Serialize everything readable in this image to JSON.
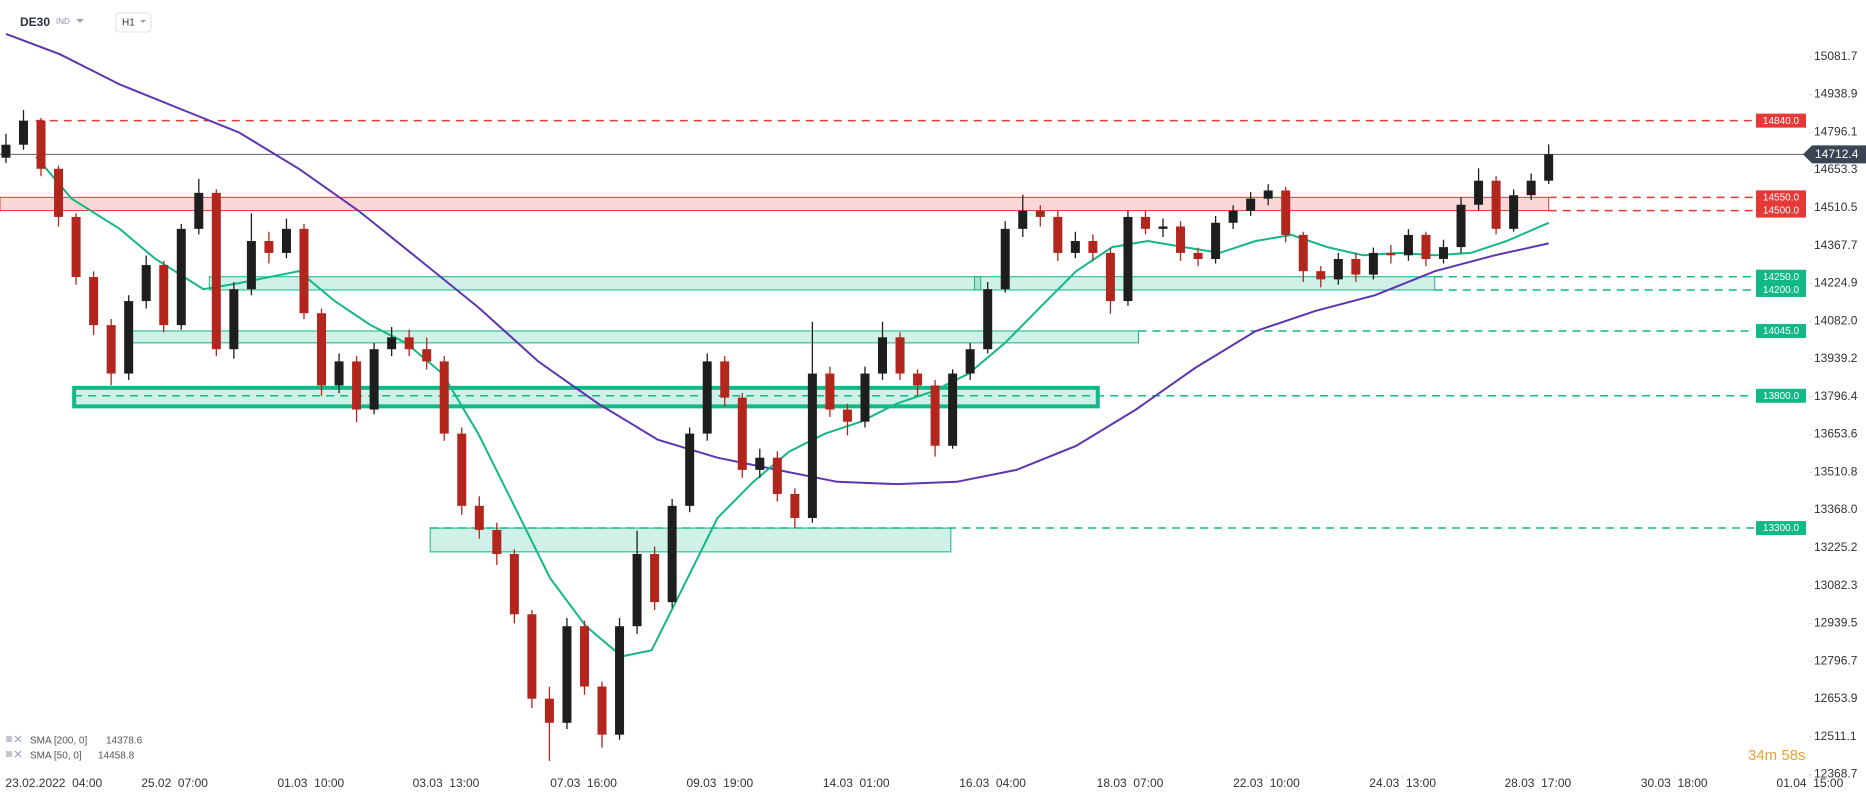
{
  "chart_data": {
    "type": "candlestick",
    "header": {
      "symbol": "DE30",
      "tag": "IND",
      "timeframe": "H1"
    },
    "xlim": [
      -0.34,
      106.1
    ],
    "ylim": [
      12291,
      15296
    ],
    "xticks": [
      {
        "value": 2.73,
        "label": "23.02.2022  04:00"
      },
      {
        "value": 9.62,
        "label": "25.02  07:00"
      },
      {
        "value": 17.39,
        "label": "01.03  10:00"
      },
      {
        "value": 25.1,
        "label": "03.03  13:00"
      },
      {
        "value": 32.95,
        "label": "07.03  16:00"
      },
      {
        "value": 40.72,
        "label": "09.03  19:00"
      },
      {
        "value": 48.5,
        "label": "14.03  01:00"
      },
      {
        "value": 56.28,
        "label": "16.03  04:00"
      },
      {
        "value": 64.12,
        "label": "18.03  07:00"
      },
      {
        "value": 71.9,
        "label": "22.03  10:00"
      },
      {
        "value": 79.67,
        "label": "24.03  13:00"
      },
      {
        "value": 87.38,
        "label": "28.03  17:00"
      },
      {
        "value": 95.16,
        "label": "30.03  18:00"
      },
      {
        "value": 102.9,
        "label": "01.04  15:00"
      }
    ],
    "yticks": [
      15081.7,
      14938.9,
      14796.1,
      14653.3,
      14510.5,
      14367.7,
      14224.9,
      {
        "value": 14082.0,
        "label": "14082.0"
      },
      13939.2,
      13796.4,
      13653.6,
      13510.8,
      {
        "value": 13368.0,
        "label": "13368.0"
      },
      13225.2,
      13082.3,
      12939.5,
      12796.7,
      12653.9,
      12511.1,
      12368.7
    ],
    "up_color": "#1e1e1e",
    "down_color": "#b3261e",
    "candles": [
      [
        14700,
        14790,
        14680,
        14749
      ],
      [
        14749,
        14880,
        14730,
        14840
      ],
      [
        14840,
        14850,
        14630,
        14658
      ],
      [
        14658,
        14670,
        14440,
        14476
      ],
      [
        14476,
        14490,
        14220,
        14249
      ],
      [
        14249,
        14270,
        14030,
        14067
      ],
      [
        14067,
        14090,
        13840,
        13884
      ],
      [
        13884,
        14180,
        13860,
        14158
      ],
      [
        14158,
        14330,
        14130,
        14294
      ],
      [
        14294,
        14310,
        14040,
        14067
      ],
      [
        14067,
        14450,
        14050,
        14431
      ],
      [
        14431,
        14620,
        14410,
        14567
      ],
      [
        14567,
        14580,
        13950,
        13976
      ],
      [
        13976,
        14230,
        13940,
        14203
      ],
      [
        14203,
        14490,
        14180,
        14385
      ],
      [
        14385,
        14420,
        14300,
        14340
      ],
      [
        14340,
        14470,
        14320,
        14431
      ],
      [
        14431,
        14450,
        14090,
        14112
      ],
      [
        14112,
        14130,
        13800,
        13839
      ],
      [
        13839,
        13960,
        13810,
        13930
      ],
      [
        13930,
        13950,
        13700,
        13748
      ],
      [
        13748,
        14000,
        13730,
        13976
      ],
      [
        13976,
        14060,
        13950,
        14021
      ],
      [
        14021,
        14050,
        13950,
        13976
      ],
      [
        13976,
        14020,
        13900,
        13930
      ],
      [
        13930,
        13950,
        13630,
        13657
      ],
      [
        13657,
        13680,
        13350,
        13384
      ],
      [
        13384,
        13420,
        13260,
        13293
      ],
      [
        13293,
        13320,
        13160,
        13202
      ],
      [
        13202,
        13220,
        12940,
        12974
      ],
      [
        12974,
        12990,
        12620,
        12655
      ],
      [
        12655,
        12700,
        12420,
        12564
      ],
      [
        12564,
        12960,
        12540,
        12929
      ],
      [
        12929,
        12950,
        12670,
        12701
      ],
      [
        12701,
        12720,
        12470,
        12519
      ],
      [
        12519,
        12960,
        12500,
        12929
      ],
      [
        12929,
        13290,
        12900,
        13202
      ],
      [
        13202,
        13230,
        12990,
        13020
      ],
      [
        13020,
        13410,
        13000,
        13384
      ],
      [
        13384,
        13680,
        13360,
        13657
      ],
      [
        13657,
        13960,
        13630,
        13930
      ],
      [
        13930,
        13950,
        13760,
        13793
      ],
      [
        13793,
        13810,
        13490,
        13520
      ],
      [
        13520,
        13600,
        13490,
        13566
      ],
      [
        13566,
        13590,
        13400,
        13429
      ],
      [
        13429,
        13450,
        13300,
        13338
      ],
      [
        13338,
        14080,
        13320,
        13884
      ],
      [
        13884,
        13910,
        13720,
        13748
      ],
      [
        13748,
        13770,
        13650,
        13702
      ],
      [
        13702,
        13910,
        13680,
        13884
      ],
      [
        13884,
        14080,
        13860,
        14021
      ],
      [
        14021,
        14040,
        13860,
        13884
      ],
      [
        13884,
        13900,
        13800,
        13839
      ],
      [
        13839,
        13860,
        13570,
        13611
      ],
      [
        13611,
        13900,
        13600,
        13884
      ],
      [
        13884,
        14000,
        13860,
        13976
      ],
      [
        13976,
        14230,
        13960,
        14203
      ],
      [
        14203,
        14460,
        14190,
        14431
      ],
      [
        14431,
        14560,
        14400,
        14499
      ],
      [
        14499,
        14520,
        14440,
        14476
      ],
      [
        14476,
        14500,
        14310,
        14340
      ],
      [
        14340,
        14420,
        14320,
        14385
      ],
      [
        14385,
        14410,
        14310,
        14340
      ],
      [
        14340,
        14360,
        14110,
        14158
      ],
      [
        14158,
        14500,
        14140,
        14476
      ],
      [
        14476,
        14500,
        14410,
        14431
      ],
      [
        14431,
        14470,
        14400,
        14440
      ],
      [
        14440,
        14460,
        14310,
        14340
      ],
      [
        14340,
        14360,
        14290,
        14317
      ],
      [
        14317,
        14480,
        14300,
        14454
      ],
      [
        14454,
        14520,
        14430,
        14499
      ],
      [
        14499,
        14570,
        14480,
        14545
      ],
      [
        14545,
        14600,
        14520,
        14576
      ],
      [
        14576,
        14590,
        14380,
        14408
      ],
      [
        14408,
        14420,
        14230,
        14271
      ],
      [
        14271,
        14290,
        14210,
        14240
      ],
      [
        14240,
        14340,
        14220,
        14317
      ],
      [
        14317,
        14340,
        14230,
        14258
      ],
      [
        14258,
        14360,
        14240,
        14340
      ],
      [
        14340,
        14370,
        14300,
        14331
      ],
      [
        14331,
        14430,
        14310,
        14408
      ],
      [
        14408,
        14420,
        14290,
        14317
      ],
      [
        14317,
        14390,
        14300,
        14362
      ],
      [
        14362,
        14550,
        14340,
        14522
      ],
      [
        14522,
        14660,
        14500,
        14613
      ],
      [
        14613,
        14630,
        14410,
        14431
      ],
      [
        14431,
        14580,
        14420,
        14558
      ],
      [
        14558,
        14640,
        14540,
        14613
      ],
      [
        14613,
        14750,
        14600,
        14712.4
      ]
    ],
    "series": [
      {
        "name": "SMA [200, 0]",
        "legend_value": 14378.6,
        "color": "#5e35b1",
        "x": [
          0,
          3.07,
          6.48,
          9.89,
          13.3,
          16.71,
          20.12,
          23.53,
          26.94,
          30.36,
          33.77,
          37.18,
          40.59,
          44.0,
          47.41,
          50.82,
          54.23,
          57.64,
          61.05,
          64.46,
          67.87,
          71.28,
          74.69,
          78.1,
          81.51,
          84.92,
          88
        ],
        "values": [
          15168,
          15091,
          14977,
          14886,
          14795,
          14658,
          14499,
          14317,
          14135,
          13930,
          13771,
          13634,
          13566,
          13520,
          13475,
          13466,
          13475,
          13520,
          13611,
          13748,
          13907,
          14044,
          14121,
          14180,
          14271,
          14331,
          14376
        ]
      },
      {
        "name": "SMA [50, 0]",
        "legend_value": 14458.8,
        "color": "#12b886",
        "x": [
          1.71,
          3.75,
          6.48,
          8.53,
          11.26,
          13.3,
          16.71,
          18.76,
          20.8,
          22.85,
          24.9,
          26.94,
          28.99,
          31.04,
          33.08,
          35.13,
          36.83,
          38.54,
          40.59,
          42.63,
          44.68,
          46.73,
          48.77,
          50.82,
          52.86,
          54.91,
          56.96,
          59.0,
          61.05,
          63.1,
          65.14,
          67.19,
          69.24,
          71.28,
          73.33,
          75.38,
          77.42,
          79.47,
          81.51,
          83.56,
          85.61,
          88
        ],
        "values": [
          14704,
          14545,
          14431,
          14317,
          14203,
          14226,
          14271,
          14158,
          14067,
          13998,
          13884,
          13657,
          13384,
          13111,
          12929,
          12815,
          12838,
          13065,
          13338,
          13475,
          13589,
          13657,
          13702,
          13771,
          13816,
          13884,
          13998,
          14135,
          14271,
          14362,
          14385,
          14362,
          14340,
          14385,
          14408,
          14362,
          14331,
          14340,
          14331,
          14340,
          14385,
          14454
        ]
      }
    ],
    "zones": [
      {
        "low": 14500,
        "high": 14550,
        "x0": -0.34,
        "x1": 88,
        "color": "#e53935",
        "emphasis": false
      },
      {
        "low": 14200,
        "high": 14250,
        "x0": 11.6,
        "x1": 55.6,
        "color": "#12b886",
        "emphasis": false
      },
      {
        "low": 14200,
        "high": 14250,
        "x0": 55.25,
        "x1": 81.5,
        "color": "#12b886",
        "emphasis": false
      },
      {
        "low": 14000,
        "high": 14045,
        "x0": 7.16,
        "x1": 64.6,
        "color": "#12b886",
        "emphasis": false
      },
      {
        "low": 13760,
        "high": 13830,
        "x0": 3.89,
        "x1": 62.28,
        "color": "#12b886",
        "emphasis": true
      },
      {
        "low": 13210,
        "high": 13300,
        "x0": 24.2,
        "x1": 53.9,
        "color": "#12b886",
        "emphasis": false
      }
    ],
    "levels": [
      {
        "value": 14840,
        "label": "14840.0",
        "color": "#e53935",
        "from": 1.7
      },
      {
        "value": 14550,
        "label": "14550.0",
        "color": "#e53935",
        "from": 88
      },
      {
        "value": 14500,
        "label": "14500.0",
        "color": "#e53935",
        "from": 88
      },
      {
        "value": 14250,
        "label": "14250.0",
        "color": "#12b886",
        "from": 81.5
      },
      {
        "value": 14200,
        "label": "14200.0",
        "color": "#12b886",
        "from": 81.5
      },
      {
        "value": 14045,
        "label": "14045.0",
        "color": "#12b886",
        "from": 64.6
      },
      {
        "value": 13800,
        "label": "13800.0",
        "color": "#12b886",
        "from": 3.89
      },
      {
        "value": 13300,
        "label": "13300.0",
        "color": "#12b886",
        "from": 24.2
      }
    ],
    "current_price": 14712.4,
    "timer": "34m 58s"
  }
}
